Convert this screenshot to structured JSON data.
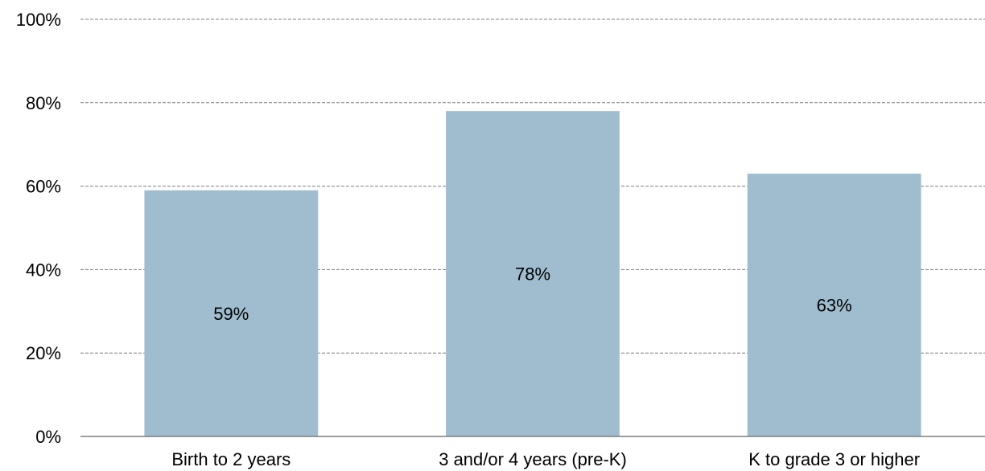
{
  "chart_data": {
    "type": "bar",
    "title": "",
    "xlabel": "",
    "ylabel": "",
    "categories": [
      "Birth to 2 years",
      "3 and/or 4 years (pre-K)",
      "K to grade 3 or higher"
    ],
    "values": [
      59,
      78,
      63
    ],
    "data_labels": [
      "59%",
      "78%",
      "63%"
    ],
    "ylim": [
      0,
      100
    ],
    "yticks": [
      0,
      20,
      40,
      60,
      80,
      100
    ],
    "ytick_labels": [
      "0%",
      "20%",
      "40%",
      "60%",
      "80%",
      "100%"
    ],
    "grid": true,
    "legend": "none",
    "bar_color": "#a0bdd0"
  }
}
